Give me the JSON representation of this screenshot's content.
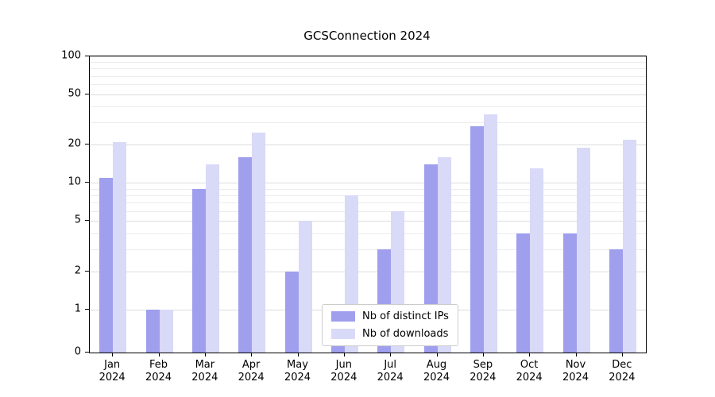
{
  "chart_data": {
    "type": "bar",
    "title": "GCSConnection 2024",
    "categories": [
      "Jan",
      "Feb",
      "Mar",
      "Apr",
      "May",
      "Jun",
      "Jul",
      "Aug",
      "Sep",
      "Oct",
      "Nov",
      "Dec"
    ],
    "year": "2024",
    "series": [
      {
        "name": "Nb of distinct IPs",
        "color": "#9f9fee",
        "values": [
          11,
          1,
          9,
          16,
          2,
          1,
          3,
          14,
          28,
          4,
          4,
          3
        ]
      },
      {
        "name": "Nb of downloads",
        "color": "#d9d9f8",
        "values": [
          21,
          1,
          14,
          25,
          5,
          8,
          6,
          16,
          35,
          13,
          19,
          22
        ]
      }
    ],
    "yticks": [
      0,
      1,
      2,
      5,
      10,
      20,
      50,
      100
    ],
    "minor_gridlines": [
      3,
      4,
      6,
      7,
      8,
      9,
      30,
      40,
      60,
      70,
      80,
      90
    ],
    "scale": "symlog",
    "ylim": [
      0,
      100
    ],
    "xlabel": "",
    "ylabel": "",
    "grid": "on",
    "legend_position": "lower center"
  }
}
